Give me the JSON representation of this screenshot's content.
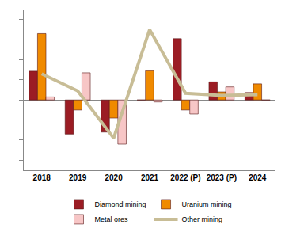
{
  "chart_data": {
    "type": "bar",
    "categories": [
      "2018",
      "2019",
      "2020",
      "2021",
      "2022 (P)",
      "2023 (P)",
      "2024"
    ],
    "series": [
      {
        "name": "Diamond mining",
        "type": "bar",
        "color": "#9b1c24",
        "values": [
          14.3,
          -17,
          -16,
          0,
          30.5,
          9,
          3.7
        ]
      },
      {
        "name": "Uranium mining",
        "type": "bar",
        "color": "#f08a00",
        "values": [
          33,
          -5,
          -9,
          14.5,
          -5,
          4,
          8
        ]
      },
      {
        "name": "Metal ores",
        "type": "bar",
        "color": "#f7c6c6",
        "values": [
          1.5,
          13.5,
          -22,
          -1,
          -7,
          6.5,
          0
        ]
      },
      {
        "name": "Other mining",
        "type": "line",
        "color": "#c8bd96",
        "values": [
          13,
          4.5,
          -19,
          35,
          3.3,
          2.2,
          2.6
        ]
      }
    ],
    "ylim": [
      -35,
      45
    ],
    "yticks": [
      -30,
      -20,
      -10,
      0,
      10,
      20,
      30,
      40
    ],
    "grid": false,
    "legend": "bottom",
    "tick_labels": "x"
  }
}
